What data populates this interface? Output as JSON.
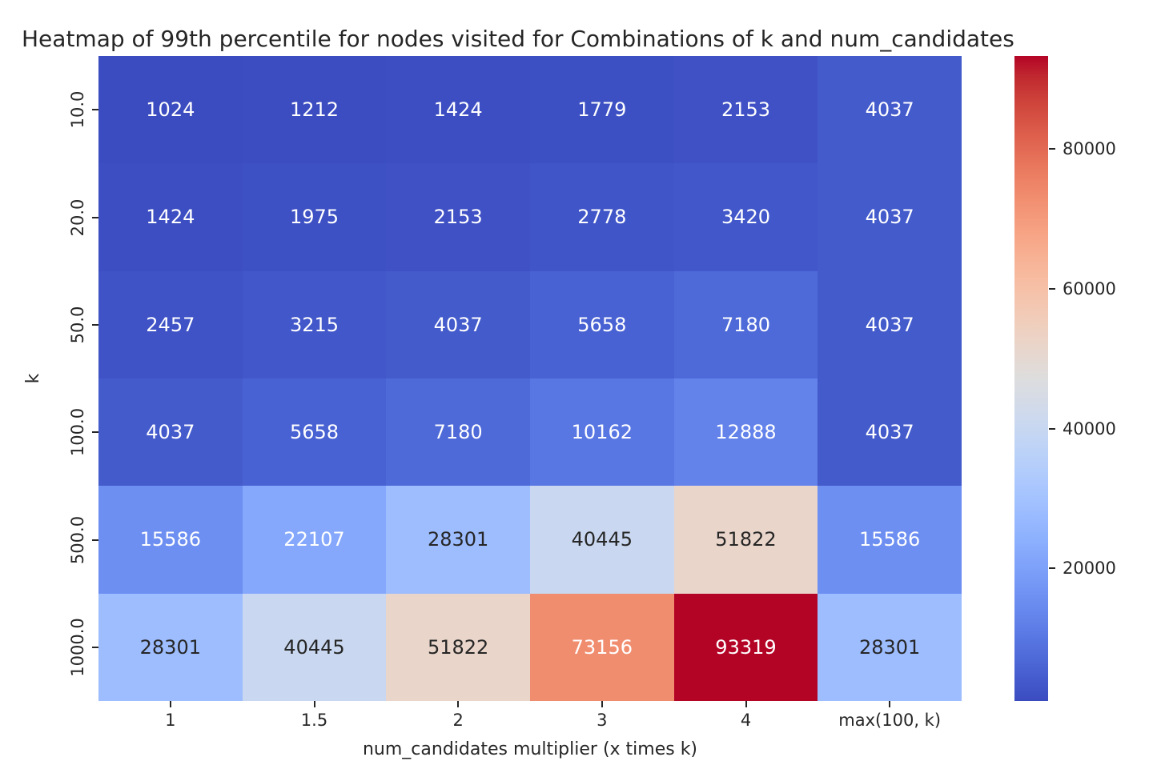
{
  "chart_data": {
    "type": "heatmap",
    "title": "Heatmap of 99th percentile for nodes visited for Combinations of k and num_candidates",
    "xlabel": "num_candidates multiplier (x times k)",
    "ylabel": "k",
    "x_ticklabels": [
      "1",
      "1.5",
      "2",
      "3",
      "4",
      "max(100, k)"
    ],
    "y_ticklabels": [
      "10.0",
      "20.0",
      "50.0",
      "100.0",
      "500.0",
      "1000.0"
    ],
    "values": [
      [
        1024,
        1212,
        1424,
        1779,
        2153,
        4037
      ],
      [
        1424,
        1975,
        2153,
        2778,
        3420,
        4037
      ],
      [
        2457,
        3215,
        4037,
        5658,
        7180,
        4037
      ],
      [
        4037,
        5658,
        7180,
        10162,
        12888,
        4037
      ],
      [
        15586,
        22107,
        28301,
        40445,
        51822,
        15586
      ],
      [
        28301,
        40445,
        51822,
        73156,
        93319,
        28301
      ]
    ],
    "vmin": 1024,
    "vmax": 93319,
    "colormap": "coolwarm",
    "colorbar_ticks": [
      20000,
      40000,
      60000,
      80000
    ],
    "colors": {
      "annotation_dark_text": "#262626",
      "annotation_light_text": "#ffffff",
      "min_cell": "#3b4cc0",
      "max_cell": "#b40426",
      "background": "#ffffff"
    },
    "legend_position": "right-colorbar",
    "grid": false
  }
}
